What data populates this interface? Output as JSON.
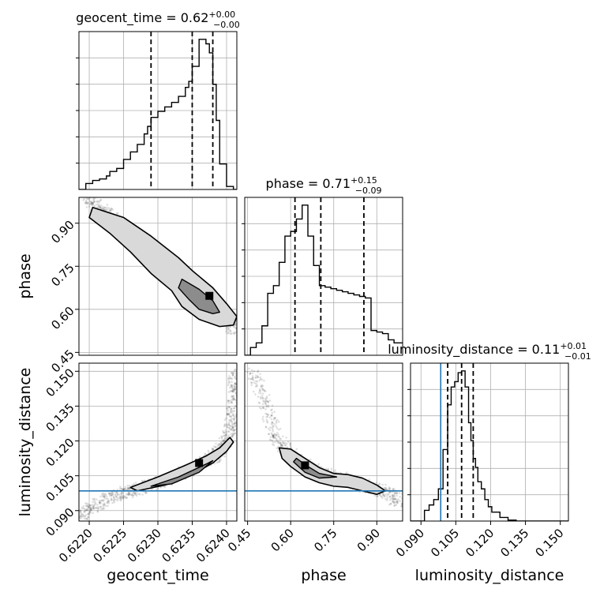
{
  "chart_data": {
    "type": "corner",
    "parameters": [
      "geocent_time",
      "phase",
      "luminosity_distance"
    ],
    "axis_labels": {
      "geocent_time": "geocent_time",
      "phase": "phase",
      "luminosity_distance": "luminosity_distance"
    },
    "ranges": {
      "geocent_time": [
        0.62185,
        0.62415
      ],
      "phase": [
        0.44,
        0.99
      ],
      "luminosity_distance": [
        0.0855,
        0.1535
      ]
    },
    "ticks": {
      "geocent_time": {
        "values": [
          0.622,
          0.6225,
          0.623,
          0.6235,
          0.624
        ],
        "labels": [
          "0.6220",
          "0.6225",
          "0.6230",
          "0.6235",
          "0.6240"
        ]
      },
      "phase": {
        "values": [
          0.45,
          0.6,
          0.75,
          0.9
        ],
        "labels": [
          "0.45",
          "0.60",
          "0.75",
          "0.90"
        ]
      },
      "luminosity_distance": {
        "values": [
          0.09,
          0.105,
          0.12,
          0.135,
          0.15
        ],
        "labels": [
          "0.090",
          "0.105",
          "0.120",
          "0.135",
          "0.150"
        ]
      }
    },
    "titles": [
      {
        "param": "geocent_time",
        "main": "geocent_time = 0.62",
        "sup": "+0.00",
        "sub": "−0.00"
      },
      {
        "param": "phase",
        "main": "phase = 0.71",
        "sup": "+0.15",
        "sub": "−0.09"
      },
      {
        "param": "luminosity_distance",
        "main": "luminosity_distance = 0.11",
        "sup": "+0.01",
        "sub": "−0.01"
      }
    ],
    "quantiles": {
      "geocent_time": [
        0.6229,
        0.6235,
        0.6238
      ],
      "phase": [
        0.615,
        0.705,
        0.855
      ],
      "luminosity_distance": [
        0.1015,
        0.1075,
        0.1125
      ]
    },
    "truth": {
      "luminosity_distance": 0.0985
    },
    "truth_color": "#1f77b4",
    "histograms": {
      "geocent_time": {
        "edges": [
          0.62185,
          0.62195,
          0.62205,
          0.62215,
          0.62225,
          0.6223,
          0.6224,
          0.6225,
          0.6226,
          0.6227,
          0.6228,
          0.62285,
          0.6229,
          0.623,
          0.6231,
          0.6232,
          0.6233,
          0.6234,
          0.62345,
          0.6235,
          0.6236,
          0.6237,
          0.62375,
          0.6238,
          0.62385,
          0.6239,
          0.624,
          0.6241,
          0.62415
        ],
        "counts": [
          0,
          4,
          6,
          7,
          9,
          12,
          14,
          20,
          25,
          30,
          37,
          42,
          48,
          52,
          55,
          58,
          62,
          68,
          72,
          82,
          100,
          97,
          91,
          70,
          46,
          17,
          2,
          0
        ]
      },
      "phase": {
        "edges": [
          0.44,
          0.46,
          0.48,
          0.5,
          0.52,
          0.54,
          0.56,
          0.58,
          0.6,
          0.62,
          0.64,
          0.66,
          0.68,
          0.7,
          0.72,
          0.74,
          0.76,
          0.78,
          0.8,
          0.82,
          0.84,
          0.86,
          0.88,
          0.9,
          0.92,
          0.94,
          0.96,
          0.99
        ],
        "counts": [
          0,
          5,
          8,
          19,
          40,
          45,
          60,
          77,
          80,
          88,
          97,
          77,
          58,
          45,
          44,
          43,
          42,
          41,
          40,
          39,
          38,
          37,
          16,
          15,
          14,
          10,
          8
        ]
      },
      "luminosity_distance": {
        "edges": [
          0.0855,
          0.0915,
          0.0935,
          0.0955,
          0.0975,
          0.0995,
          0.1015,
          0.103,
          0.1045,
          0.106,
          0.1075,
          0.109,
          0.1105,
          0.1115,
          0.1125,
          0.1135,
          0.1145,
          0.116,
          0.1175,
          0.119,
          0.1205,
          0.124,
          0.1275,
          0.131,
          0.1535
        ],
        "counts": [
          0,
          6,
          9,
          12,
          18,
          40,
          65,
          75,
          78,
          83,
          84,
          75,
          55,
          45,
          35,
          30,
          22,
          18,
          12,
          8,
          5,
          2,
          0.5,
          0
        ]
      }
    },
    "joint": [
      {
        "x": "geocent_time",
        "y": "phase",
        "ridge": [
          [
            0.62195,
            0.99
          ],
          [
            0.6221,
            0.96
          ],
          [
            0.6223,
            0.93
          ],
          [
            0.6226,
            0.87
          ],
          [
            0.6229,
            0.81
          ],
          [
            0.6232,
            0.75
          ],
          [
            0.6234,
            0.71
          ],
          [
            0.6236,
            0.665
          ],
          [
            0.6238,
            0.625
          ],
          [
            0.6239,
            0.6
          ],
          [
            0.62405,
            0.56
          ],
          [
            0.6241,
            0.53
          ]
        ],
        "outer_contour": [
          [
            0.62205,
            0.955
          ],
          [
            0.6225,
            0.92
          ],
          [
            0.6229,
            0.855
          ],
          [
            0.6233,
            0.78
          ],
          [
            0.6235,
            0.735
          ],
          [
            0.6238,
            0.675
          ],
          [
            0.624,
            0.62
          ],
          [
            0.62415,
            0.575
          ],
          [
            0.6241,
            0.545
          ],
          [
            0.6239,
            0.54
          ],
          [
            0.6236,
            0.565
          ],
          [
            0.62335,
            0.61
          ],
          [
            0.6232,
            0.665
          ],
          [
            0.6229,
            0.725
          ],
          [
            0.6226,
            0.8
          ],
          [
            0.6223,
            0.865
          ],
          [
            0.622,
            0.92
          ]
        ],
        "inner_contour": [
          [
            0.62335,
            0.705
          ],
          [
            0.6236,
            0.67
          ],
          [
            0.6238,
            0.63
          ],
          [
            0.6239,
            0.59
          ],
          [
            0.6238,
            0.585
          ],
          [
            0.6236,
            0.6
          ],
          [
            0.62345,
            0.635
          ],
          [
            0.6233,
            0.675
          ]
        ],
        "peak": [
          0.62375,
          0.647
        ]
      },
      {
        "x": "geocent_time",
        "y": "luminosity_distance",
        "ridge": [
          [
            0.62185,
            0.0865
          ],
          [
            0.622,
            0.0905
          ],
          [
            0.6222,
            0.0945
          ],
          [
            0.6224,
            0.0965
          ],
          [
            0.6226,
            0.0985
          ],
          [
            0.6228,
            0.1
          ],
          [
            0.623,
            0.102
          ],
          [
            0.6232,
            0.104
          ],
          [
            0.6234,
            0.107
          ],
          [
            0.6236,
            0.11
          ],
          [
            0.6238,
            0.113
          ],
          [
            0.6239,
            0.116
          ],
          [
            0.624,
            0.12
          ],
          [
            0.62405,
            0.126
          ],
          [
            0.6241,
            0.134
          ],
          [
            0.6241,
            0.142
          ],
          [
            0.6241,
            0.15
          ]
        ],
        "outer_contour": [
          [
            0.6226,
            0.1
          ],
          [
            0.623,
            0.1045
          ],
          [
            0.6234,
            0.1095
          ],
          [
            0.6237,
            0.1135
          ],
          [
            0.6239,
            0.117
          ],
          [
            0.62405,
            0.1215
          ],
          [
            0.6241,
            0.1195
          ],
          [
            0.624,
            0.1155
          ],
          [
            0.6238,
            0.1105
          ],
          [
            0.6235,
            0.1055
          ],
          [
            0.6231,
            0.101
          ],
          [
            0.6227,
            0.0985
          ]
        ],
        "inner_contour": [
          [
            0.6229,
            0.1005
          ],
          [
            0.6233,
            0.1045
          ],
          [
            0.6237,
            0.11
          ],
          [
            0.6238,
            0.1115
          ],
          [
            0.6236,
            0.1065
          ],
          [
            0.6232,
            0.1015
          ]
        ],
        "peak": [
          0.6236,
          0.1105
        ]
      },
      {
        "x": "phase",
        "y": "luminosity_distance",
        "ridge": [
          [
            0.47,
            0.15
          ],
          [
            0.5,
            0.14
          ],
          [
            0.53,
            0.128
          ],
          [
            0.56,
            0.12
          ],
          [
            0.6,
            0.1145
          ],
          [
            0.65,
            0.11
          ],
          [
            0.7,
            0.1065
          ],
          [
            0.75,
            0.1045
          ],
          [
            0.8,
            0.103
          ],
          [
            0.85,
            0.101
          ],
          [
            0.9,
            0.099
          ],
          [
            0.95,
            0.0965
          ],
          [
            0.98,
            0.094
          ]
        ],
        "outer_contour": [
          [
            0.56,
            0.117
          ],
          [
            0.6,
            0.1165
          ],
          [
            0.65,
            0.1125
          ],
          [
            0.7,
            0.1085
          ],
          [
            0.75,
            0.106
          ],
          [
            0.8,
            0.1055
          ],
          [
            0.85,
            0.104
          ],
          [
            0.9,
            0.101
          ],
          [
            0.93,
            0.0985
          ],
          [
            0.9,
            0.097
          ],
          [
            0.85,
            0.0985
          ],
          [
            0.8,
            0.1
          ],
          [
            0.75,
            0.1005
          ],
          [
            0.7,
            0.102
          ],
          [
            0.65,
            0.1045
          ],
          [
            0.6,
            0.109
          ],
          [
            0.57,
            0.1125
          ]
        ],
        "inner_contour": [
          [
            0.62,
            0.1125
          ],
          [
            0.66,
            0.109
          ],
          [
            0.7,
            0.106
          ],
          [
            0.76,
            0.1045
          ],
          [
            0.7,
            0.104
          ],
          [
            0.65,
            0.1065
          ],
          [
            0.61,
            0.111
          ]
        ],
        "peak": [
          0.65,
          0.1095
        ]
      }
    ],
    "grid": true
  }
}
